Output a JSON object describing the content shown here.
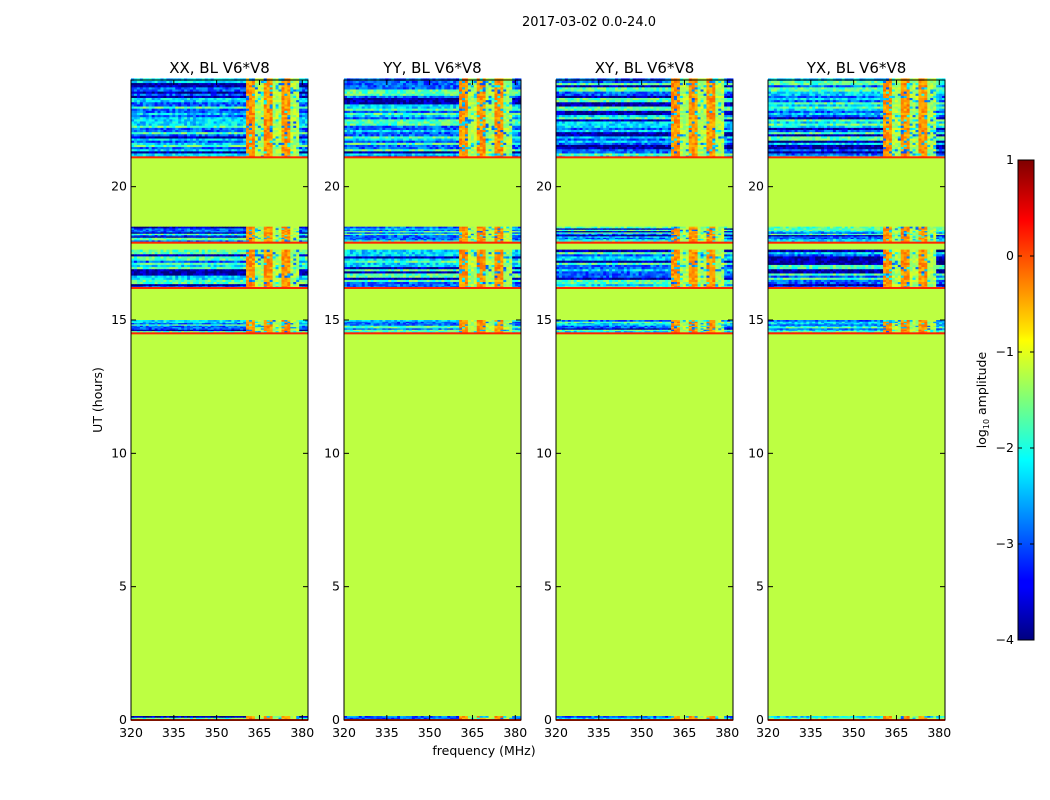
{
  "chart_data": {
    "type": "heatmap",
    "suptitle": "2017-03-02 0.0-24.0",
    "xlabel": "frequency (MHz)",
    "ylabel": "UT (hours)",
    "xlim": [
      320,
      382
    ],
    "ylim": [
      0,
      24
    ],
    "xticks": [
      320,
      335,
      350,
      365,
      380
    ],
    "yticks": [
      0,
      5,
      10,
      15,
      20
    ],
    "colormap": "jet",
    "colorbar": {
      "label_base": "log",
      "label_sub": "10",
      "label_rest": " amplitude",
      "min": -4,
      "max": 1,
      "ticks": [
        1,
        0,
        -1,
        -2,
        -3,
        -4
      ],
      "tick_labels": [
        "1",
        "0",
        "−1",
        "−2",
        "−3",
        "−4"
      ]
    },
    "background_level": -1.2,
    "rfi_freq_range_mhz": [
      360,
      378
    ],
    "rfi_level": -0.35,
    "active_time_bands_hours": [
      [
        0.0,
        0.15
      ],
      [
        14.5,
        15.0
      ],
      [
        16.2,
        17.6
      ],
      [
        17.9,
        18.5
      ],
      [
        21.1,
        24.0
      ]
    ],
    "panels": [
      {
        "title": "XX, BL V6*V8"
      },
      {
        "title": "YY, BL V6*V8"
      },
      {
        "title": "XY, BL V6*V8"
      },
      {
        "title": "YX, BL V6*V8"
      }
    ]
  }
}
